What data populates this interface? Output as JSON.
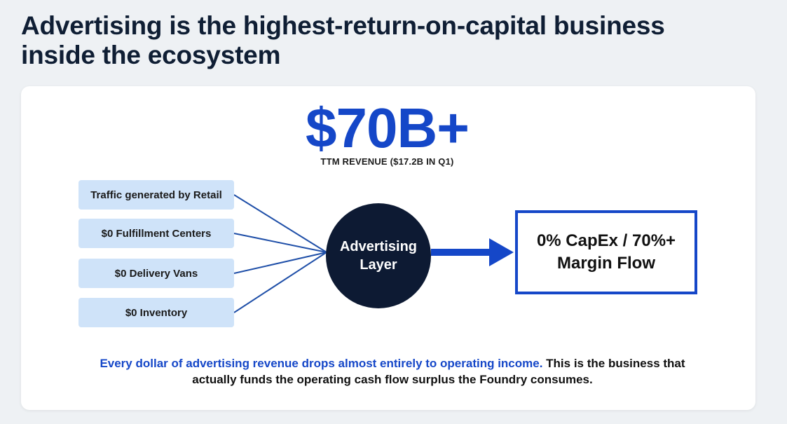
{
  "headline": "Advertising is the highest-return-on-capital business inside the ecosystem",
  "metric": {
    "value": "$70B+",
    "caption": "TTM REVENUE ($17.2B IN Q1)"
  },
  "inputs": [
    "Traffic generated by Retail",
    "$0 Fulfillment Centers",
    "$0 Delivery Vans",
    "$0 Inventory"
  ],
  "hub": {
    "label": "Advertising Layer"
  },
  "outcome": {
    "label": "0% CapEx / 70%+ Margin Flow"
  },
  "footer": {
    "highlight": "Every dollar of advertising revenue drops almost entirely to operating income.",
    "rest": " This is the business that actually funds the operating cash flow surplus the Foundry consumes."
  },
  "colors": {
    "accent_blue": "#1547c8",
    "hub_navy": "#0d1a33",
    "input_fill": "#cfe3f9",
    "connector_blue": "#1f4fa8"
  }
}
